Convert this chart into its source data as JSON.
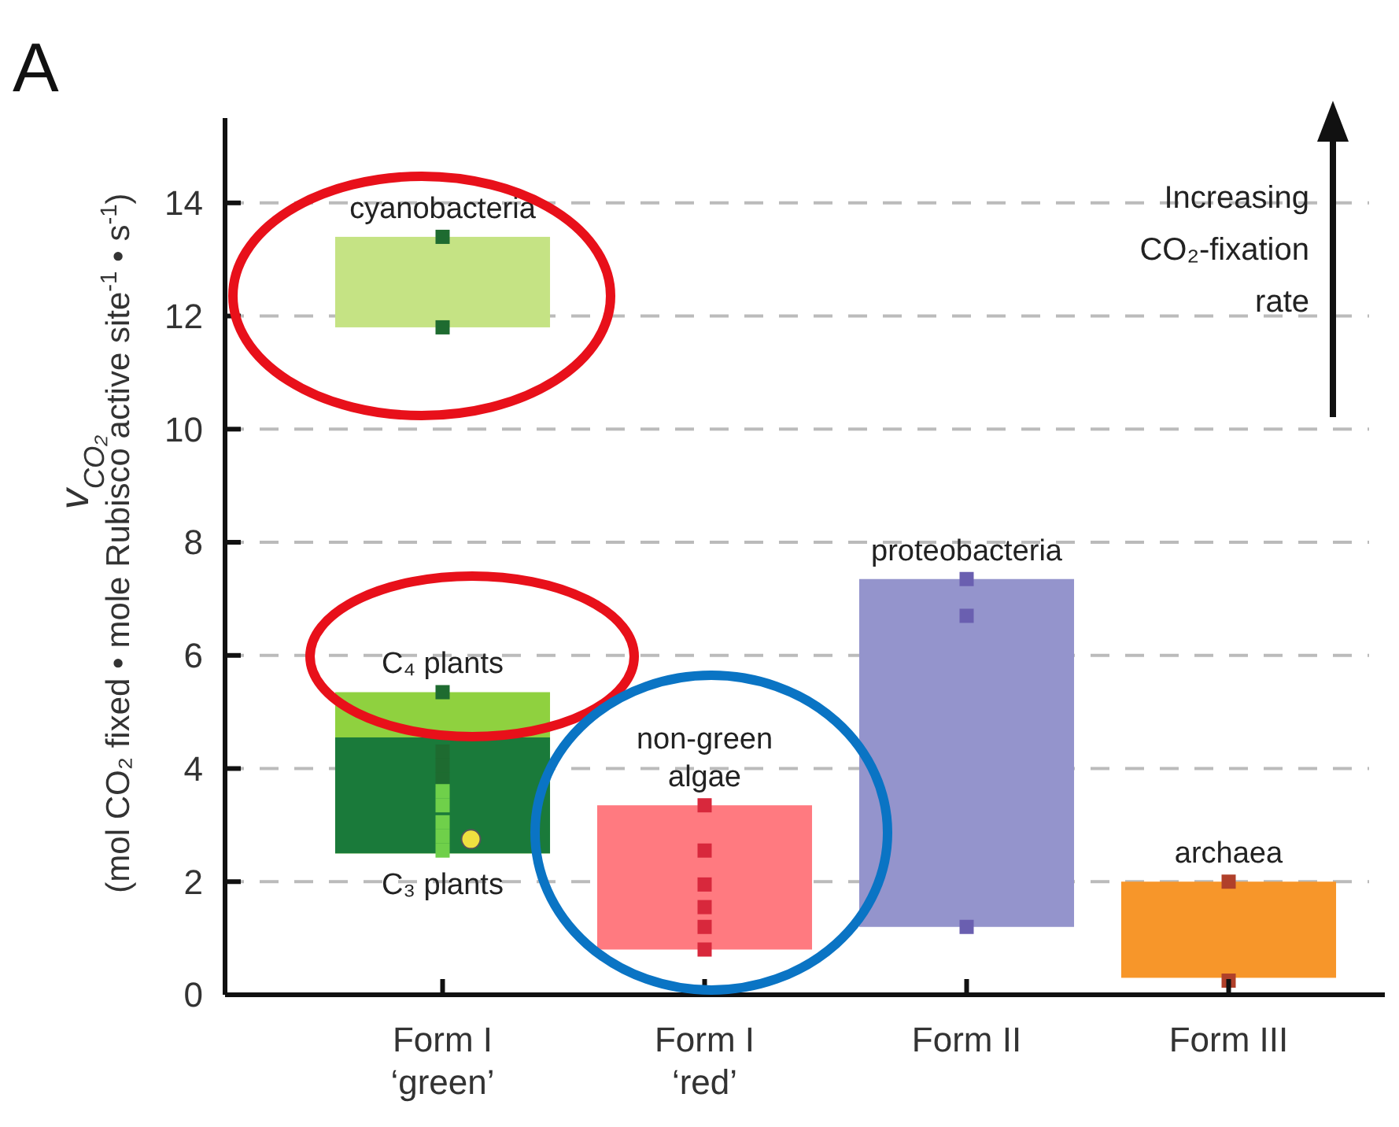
{
  "chart_data": {
    "type": "bar",
    "title": "A",
    "ylabel": "v$_{CO₂}$\n(mol CO₂ fixed • mole Rubisco active site$^{-1}$ • s$^{-1}$)",
    "categories": [
      "Form I\n‘green’",
      "Form I\n‘red’",
      "Form II",
      "Form III"
    ],
    "ylim": [
      0,
      15.5
    ],
    "yticks": [
      0,
      2,
      4,
      6,
      8,
      10,
      12,
      14
    ],
    "grid": "y",
    "annotations": [
      "Increasing CO₂-fixation rate"
    ],
    "series": [
      {
        "name": "cyanobacteria",
        "color": "#c5e384",
        "values": [
          1.6,
          null,
          null,
          null
        ],
        "base": [
          11.8,
          null,
          null,
          null
        ]
      },
      {
        "name": "C₄ plants",
        "color": "#8fd13f",
        "values": [
          2.85,
          null,
          null,
          null
        ],
        "base": [
          2.5,
          null,
          null,
          null
        ]
      },
      {
        "name": "C₃ plants",
        "color": "#1a7a3a",
        "values": [
          2.05,
          null,
          null,
          null
        ],
        "base": [
          2.5,
          null,
          null,
          null
        ]
      },
      {
        "name": "non-green algae",
        "color": "#ff7a80",
        "values": [
          null,
          2.55,
          null,
          null
        ],
        "base": [
          null,
          0.8,
          null,
          null
        ]
      },
      {
        "name": "proteobacteria",
        "color": "#9494cc",
        "values": [
          null,
          null,
          6.15,
          null
        ],
        "base": [
          null,
          null,
          1.2,
          null
        ]
      },
      {
        "name": "archaea",
        "color": "#f7962a",
        "values": [
          null,
          null,
          null,
          1.7
        ],
        "base": [
          null,
          null,
          null,
          0.3
        ]
      },
      {
        "type": "scatter",
        "color": "#1e6b30",
        "marker": "square",
        "x": [
          "Form I\n‘green’",
          "Form I\n‘green’",
          "Form I\n‘green’",
          "Form I\n‘green’",
          "Form I\n‘green’",
          "Form I\n‘green’"
        ],
        "values": [
          13.4,
          11.8,
          5.35,
          4.3,
          4.05,
          3.8
        ]
      },
      {
        "type": "scatter",
        "color": "#6fd04a",
        "marker": "square",
        "x": [
          "Form I\n‘green’",
          "Form I\n‘green’",
          "Form I\n‘green’",
          "Form I\n‘green’",
          "Form I\n‘green’"
        ],
        "values": [
          3.6,
          3.35,
          3.05,
          2.8,
          2.55
        ]
      },
      {
        "type": "scatter",
        "color": "#d8283c",
        "marker": "square",
        "x": [
          "Form I\n‘red’",
          "Form I\n‘red’",
          "Form I\n‘red’",
          "Form I\n‘red’",
          "Form I\n‘red’",
          "Form I\n‘red’"
        ],
        "values": [
          3.35,
          2.55,
          1.95,
          1.55,
          1.2,
          0.8
        ]
      },
      {
        "type": "scatter",
        "color": "#6a5fb0",
        "marker": "square",
        "x": [
          "Form II",
          "Form II",
          "Form II"
        ],
        "values": [
          7.35,
          6.7,
          1.2
        ]
      },
      {
        "type": "scatter",
        "color": "#b0402a",
        "marker": "square",
        "x": [
          "Form III",
          "Form III"
        ],
        "values": [
          2.0,
          0.25
        ]
      },
      {
        "type": "scatter",
        "color": "#f0e040",
        "marker": "circle",
        "x": [
          "Form I\n‘green’"
        ],
        "values": [
          2.75
        ]
      }
    ]
  }
}
